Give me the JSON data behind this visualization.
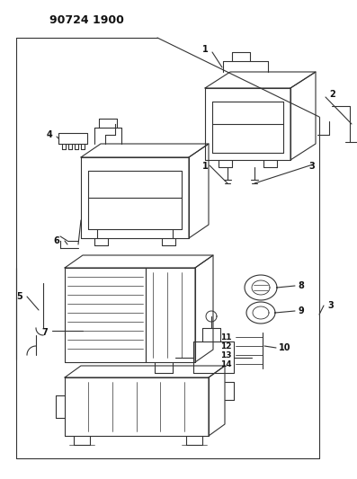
{
  "title": "90724 1900",
  "bg": "#ffffff",
  "lc": "#333333",
  "tc": "#111111",
  "fig_w": 3.97,
  "fig_h": 5.33,
  "dpi": 100
}
